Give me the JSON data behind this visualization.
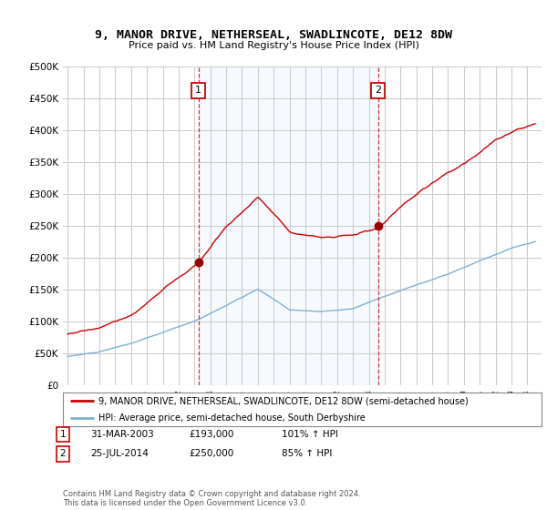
{
  "title": "9, MANOR DRIVE, NETHERSEAL, SWADLINCOTE, DE12 8DW",
  "subtitle": "Price paid vs. HM Land Registry's House Price Index (HPI)",
  "ylabel_ticks": [
    "£0",
    "£50K",
    "£100K",
    "£150K",
    "£200K",
    "£250K",
    "£300K",
    "£350K",
    "£400K",
    "£450K",
    "£500K"
  ],
  "ytick_values": [
    0,
    50000,
    100000,
    150000,
    200000,
    250000,
    300000,
    350000,
    400000,
    450000,
    500000
  ],
  "sale1_date": "31-MAR-2003",
  "sale1_price": 193000,
  "sale1_year": 2003.25,
  "sale2_date": "25-JUL-2014",
  "sale2_price": 250000,
  "sale2_year": 2014.58,
  "sale1_hpi": "101% ↑ HPI",
  "sale2_hpi": "85% ↑ HPI",
  "legend_property": "9, MANOR DRIVE, NETHERSEAL, SWADLINCOTE, DE12 8DW (semi-detached house)",
  "legend_hpi": "HPI: Average price, semi-detached house, South Derbyshire",
  "footer": "Contains HM Land Registry data © Crown copyright and database right 2024.\nThis data is licensed under the Open Government Licence v3.0.",
  "property_color": "#cc0000",
  "hpi_color": "#7ab0d4",
  "vline_color": "#cc0000",
  "background_color": "#ffffff",
  "plot_bg_color": "#ffffff",
  "grid_color": "#cccccc",
  "shade_color": "#ddeeff",
  "sale_marker_color": "#990000",
  "box_color": "#cc0000",
  "xmin": 1995,
  "xmax": 2025
}
